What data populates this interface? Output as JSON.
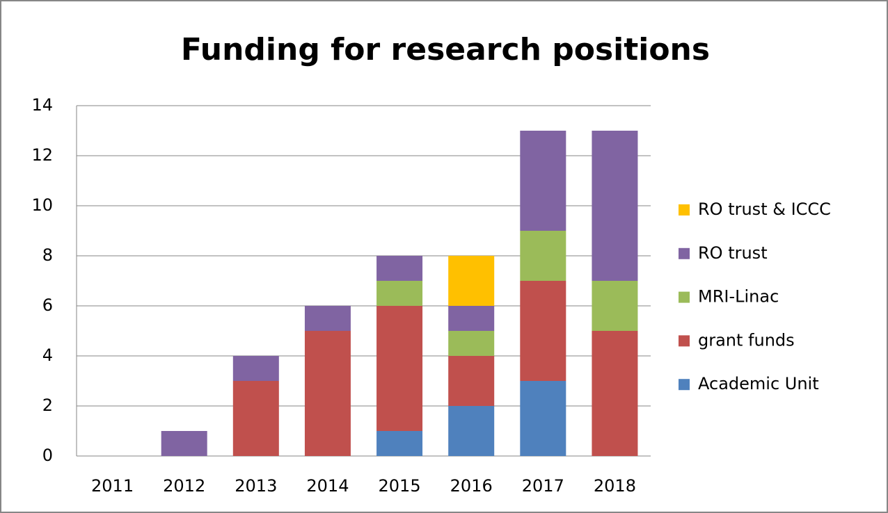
{
  "chart_data": {
    "type": "stacked_bar",
    "title": "Funding for research positions",
    "categories": [
      "2011",
      "2012",
      "2013",
      "2014",
      "2015",
      "2016",
      "2017",
      "2018"
    ],
    "series": [
      {
        "name": "Academic Unit",
        "color": "#4f81bd",
        "values": [
          0,
          0,
          0,
          0,
          1,
          2,
          3,
          0
        ]
      },
      {
        "name": "grant funds",
        "color": "#c0504d",
        "values": [
          0,
          0,
          3,
          5,
          5,
          2,
          4,
          5
        ]
      },
      {
        "name": "MRI-Linac",
        "color": "#9bbb59",
        "values": [
          0,
          0,
          0,
          0,
          1,
          1,
          2,
          2
        ]
      },
      {
        "name": "RO trust",
        "color": "#8064a2",
        "values": [
          0,
          1,
          1,
          1,
          1,
          1,
          4,
          6
        ]
      },
      {
        "name": "RO trust & ICCC",
        "color": "#ffc000",
        "values": [
          0,
          0,
          0,
          0,
          0,
          2,
          0,
          0
        ]
      }
    ],
    "ylim": [
      0,
      14
    ],
    "yticks": [
      0,
      2,
      4,
      6,
      8,
      10,
      12,
      14
    ],
    "grid": true,
    "legend": "right"
  }
}
